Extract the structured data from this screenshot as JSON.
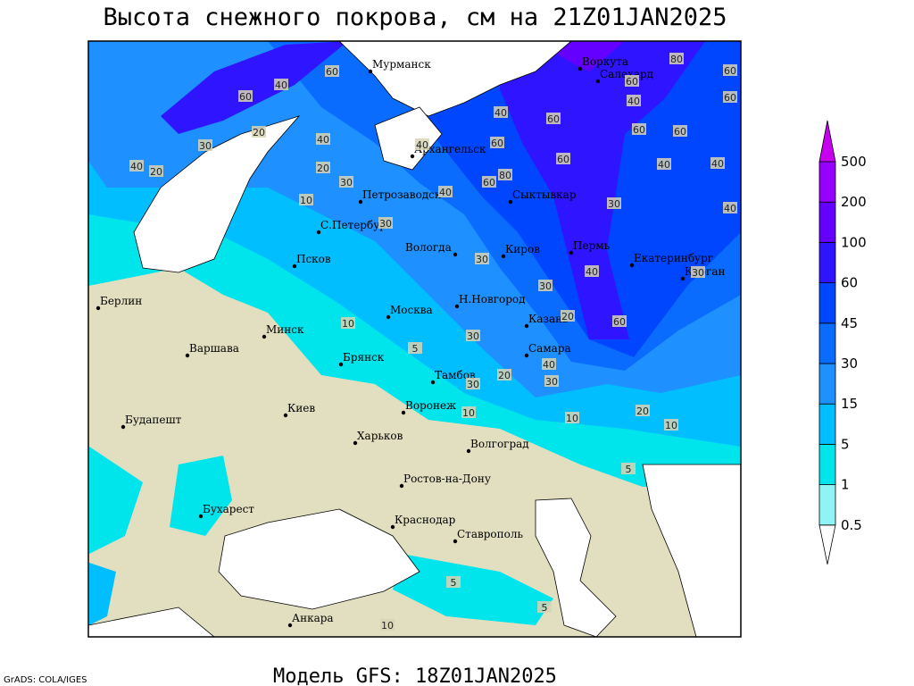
{
  "title": "Высота снежного покрова, см на 21Z01JAN2025",
  "subtitle": "Модель GFS: 18Z01JAN2025",
  "credit": "GrADS: COLA/IGES",
  "legend": {
    "levels": [
      0.5,
      1,
      5,
      15,
      30,
      45,
      60,
      100,
      200,
      500
    ],
    "colors": [
      "#ffffff",
      "#90f4f4",
      "#00e4ec",
      "#00beff",
      "#1e90ff",
      "#0a6cff",
      "#0046ff",
      "#2e14ff",
      "#6400ff",
      "#9600ff",
      "#c800f0"
    ]
  },
  "cities": [
    "Мурманск",
    "Воркута",
    "Салехард",
    "Архангельск",
    "Петрозаводск",
    "Сыктывкар",
    "С.Петербург",
    "Вологда",
    "Киров",
    "Пермь",
    "Екатеринбург",
    "Курган",
    "Псков",
    "Берлин",
    "Н.Новгород",
    "Москва",
    "Казань",
    "Минск",
    "Варшава",
    "Самара",
    "Брянск",
    "Тамбов",
    "Киев",
    "Воронеж",
    "Будапешт",
    "Харьков",
    "Волгоград",
    "Ростов-на-Дону",
    "Бухарест",
    "Краснодар",
    "Ставрополь",
    "Анкара"
  ],
  "contour_labels": [
    60,
    40,
    60,
    30,
    40,
    20,
    20,
    40,
    20,
    10,
    30,
    30,
    40,
    60,
    80,
    60,
    40,
    60,
    60,
    30,
    40,
    40,
    60,
    60,
    40,
    60,
    80,
    60,
    60,
    40,
    30,
    40,
    30,
    30,
    20,
    60,
    10,
    5,
    30,
    40,
    20,
    30,
    30,
    10,
    10,
    20,
    10,
    5,
    10,
    5,
    5,
    40
  ]
}
